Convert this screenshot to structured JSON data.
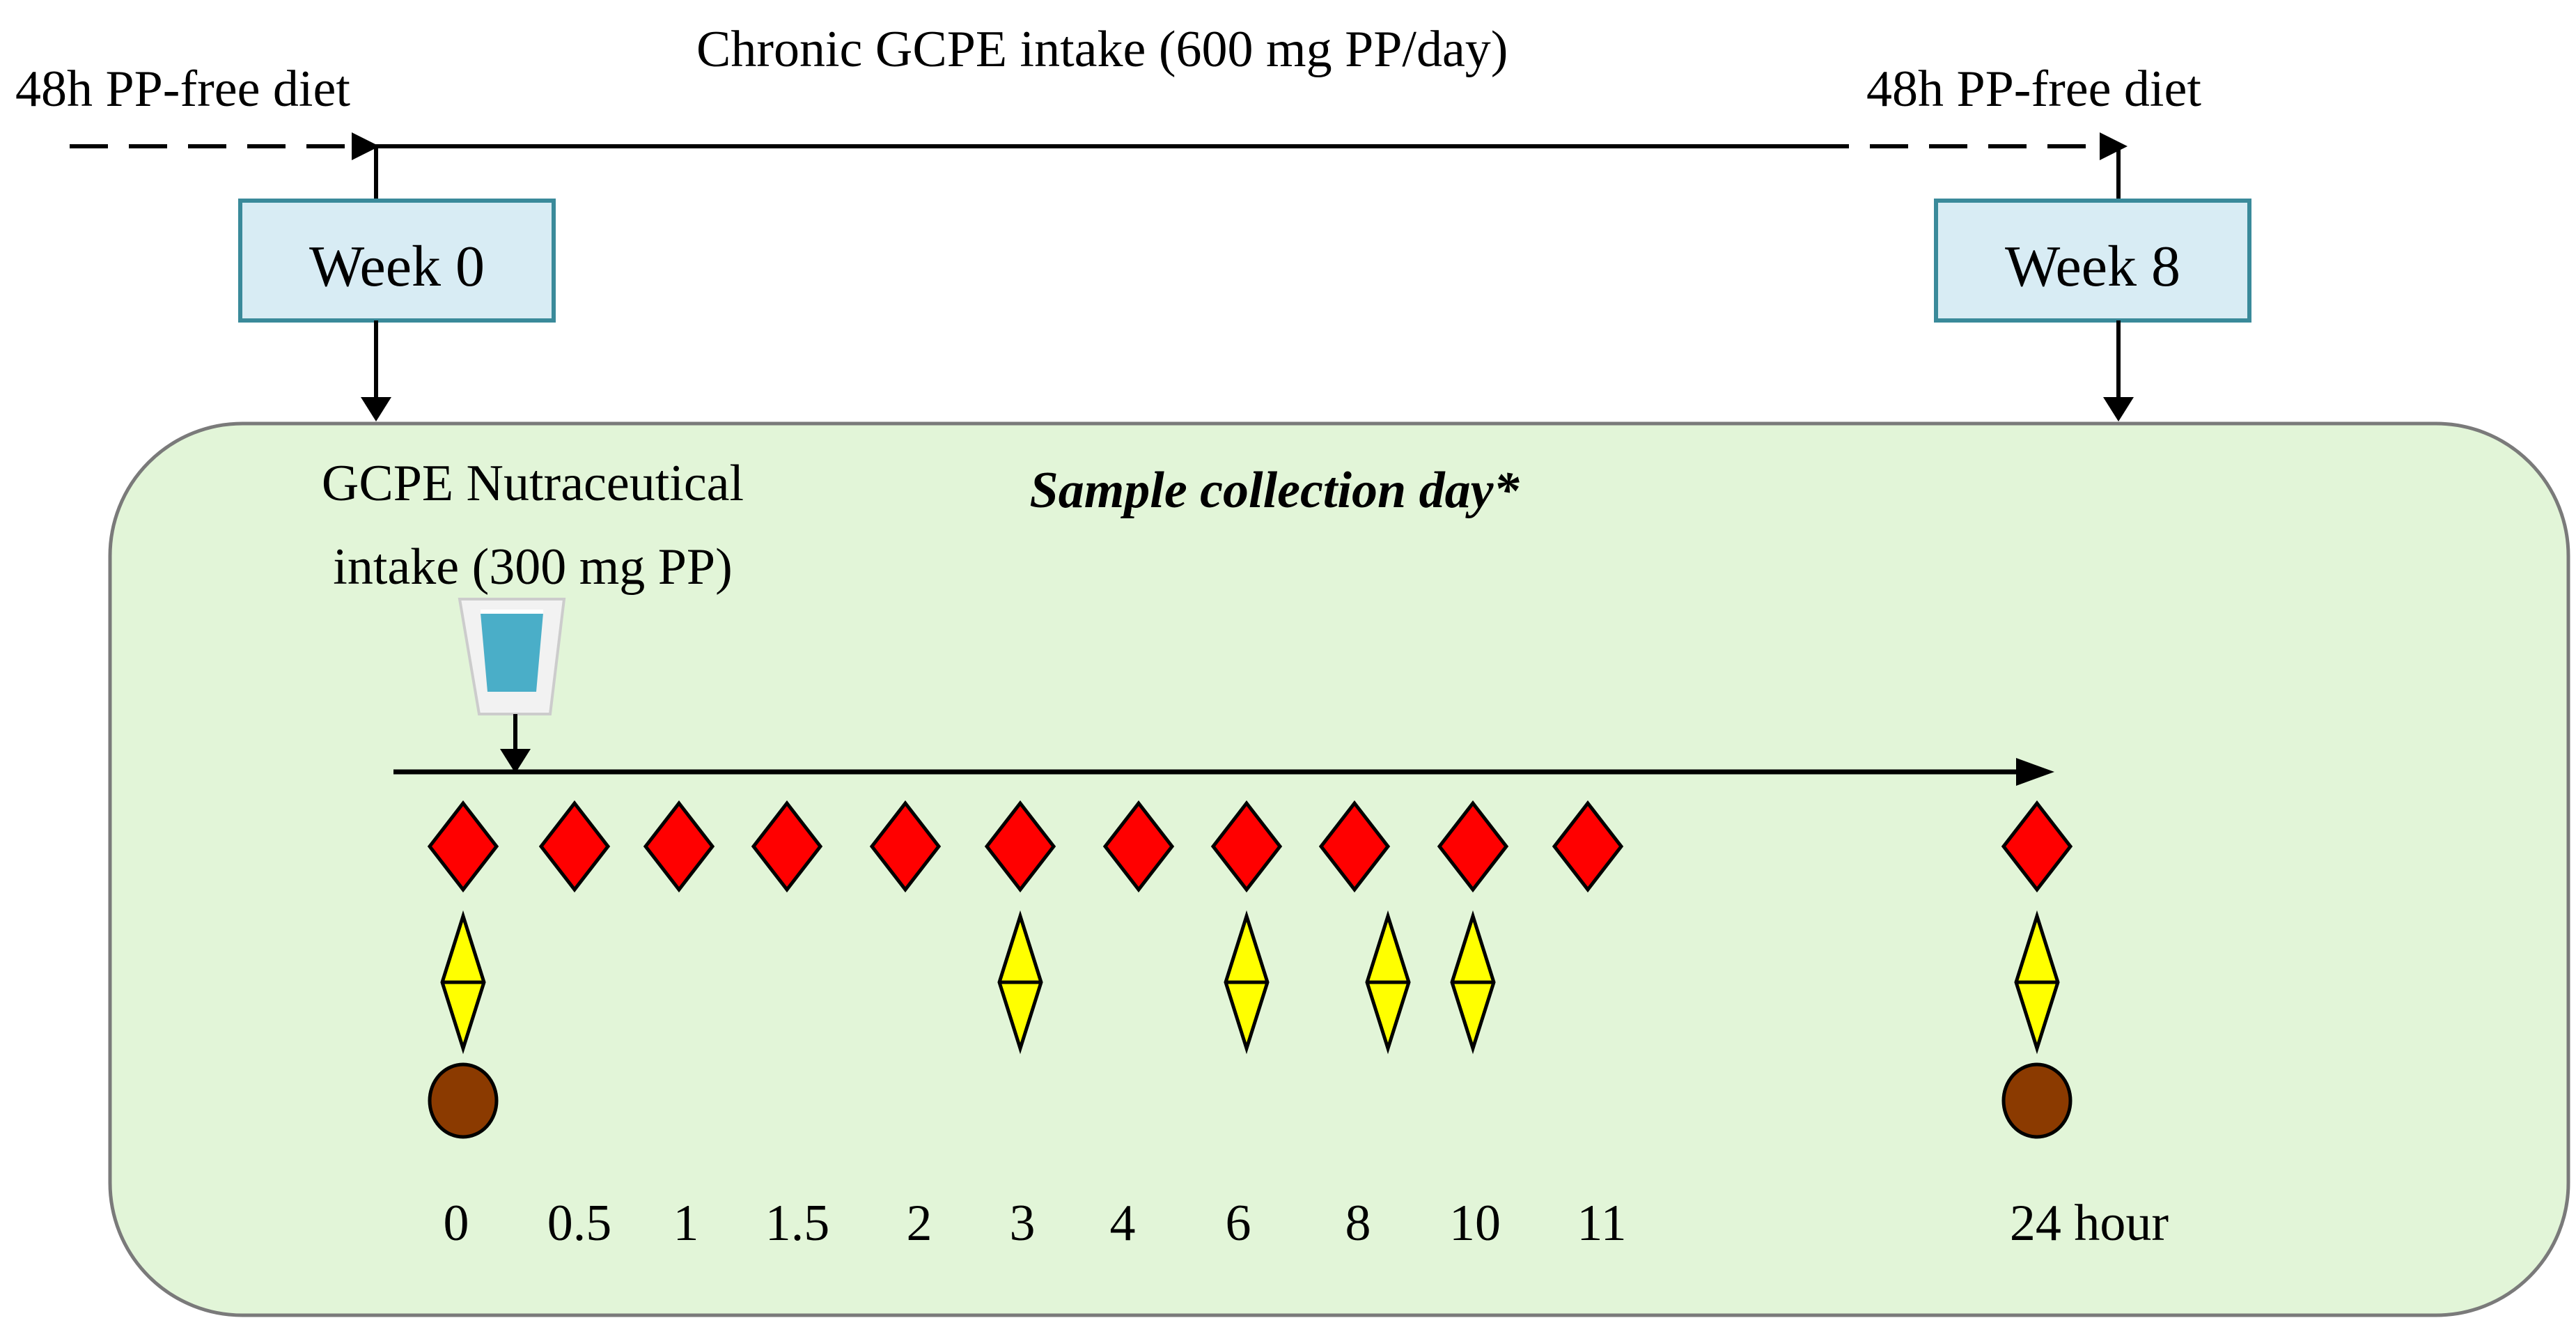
{
  "top": {
    "chronic_label": "Chronic GCPE intake (600 mg PP/day)",
    "left_diet_label": "48h PP-free diet",
    "right_diet_label": "48h PP-free diet"
  },
  "weeks": {
    "start": "Week 0",
    "end": "Week 8"
  },
  "panel": {
    "title": "Sample collection day*",
    "intake_line1": "GCPE Nutraceutical",
    "intake_line2": "intake (300 mg PP)",
    "background_color": "#e2f5d8"
  },
  "timeline": {
    "time_points": [
      "0",
      "0.5",
      "1",
      "1.5",
      "2",
      "3",
      "4",
      "6",
      "8",
      "10",
      "11",
      "24 hour"
    ],
    "red_diamond": [
      true,
      true,
      true,
      true,
      true,
      true,
      true,
      true,
      true,
      true,
      true,
      true
    ],
    "yellow_diamond": [
      true,
      false,
      false,
      false,
      false,
      true,
      false,
      true,
      true,
      true,
      false,
      true
    ],
    "brown_circle": [
      true,
      false,
      false,
      false,
      false,
      false,
      false,
      false,
      false,
      false,
      false,
      true
    ],
    "yellow_shift": [
      0,
      0,
      0,
      0,
      0,
      0,
      0,
      0,
      1,
      0,
      0,
      0
    ],
    "colors": {
      "red": "#ff0000",
      "yellow": "#ffff00",
      "brown": "#8b3a00",
      "week_box": "#d8ecf4",
      "week_border": "#3a8a9a",
      "cup_water": "#4aaec8"
    }
  }
}
